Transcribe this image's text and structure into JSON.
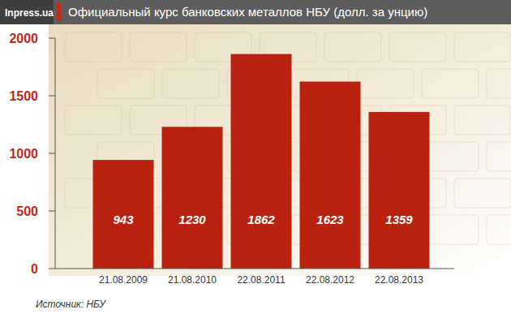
{
  "chart_data": {
    "type": "bar",
    "logo": "Inpress.ua",
    "title": "Официальный курс банковских металлов НБУ (долл. за унцию)",
    "categories": [
      "21.08.2009",
      "21.08.2010",
      "22.08.2011",
      "22.08.2012",
      "22.08.2013"
    ],
    "values": [
      943,
      1230,
      1862,
      1623,
      1359
    ],
    "color": "#b8220f",
    "ylim": [
      0,
      2000
    ],
    "yticks": [
      0,
      500,
      1000,
      1500,
      2000
    ],
    "grid": false,
    "data_labels": true,
    "source": "Источник: НБУ"
  }
}
